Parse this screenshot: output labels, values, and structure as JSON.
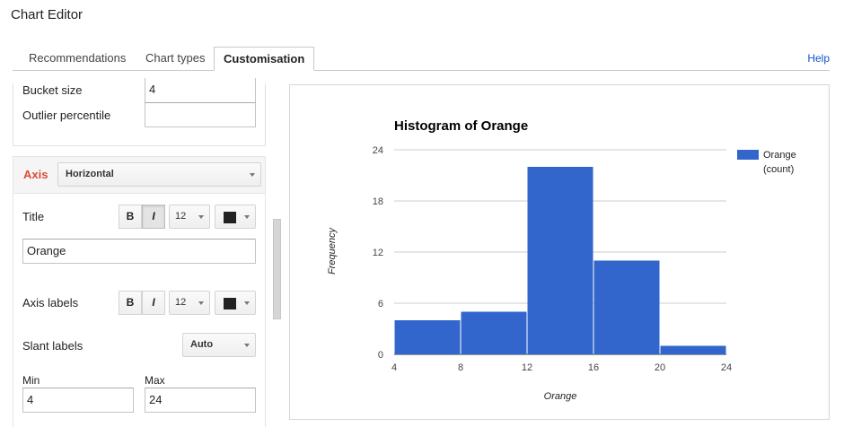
{
  "window": {
    "title": "Chart Editor"
  },
  "tabs": [
    {
      "label": "Recommendations",
      "active": false
    },
    {
      "label": "Chart types",
      "active": false
    },
    {
      "label": "Customisation",
      "active": true
    }
  ],
  "help_label": "Help",
  "histogram": {
    "bucket_size_label": "Bucket size",
    "bucket_size_value": "4",
    "outlier_label": "Outlier percentile",
    "outlier_value": ""
  },
  "axis": {
    "section_label": "Axis",
    "selected": "Horizontal",
    "title_label": "Title",
    "title_value": "Orange",
    "title_font_size": "12",
    "axis_labels_label": "Axis labels",
    "axis_labels_font_size": "12",
    "slant_label": "Slant labels",
    "slant_value": "Auto",
    "min_label": "Min",
    "min_value": "4",
    "max_label": "Max",
    "max_value": "24",
    "bold_glyph": "B",
    "italic_glyph": "I",
    "text_color": "#222222"
  },
  "chart_data": {
    "type": "bar",
    "title": "Histogram of Orange",
    "xlabel": "Orange",
    "ylabel": "Frequency",
    "bins": [
      {
        "from": 4,
        "to": 8,
        "count": 4
      },
      {
        "from": 8,
        "to": 12,
        "count": 5
      },
      {
        "from": 12,
        "to": 16,
        "count": 22
      },
      {
        "from": 16,
        "to": 20,
        "count": 11
      },
      {
        "from": 20,
        "to": 24,
        "count": 1
      }
    ],
    "x_ticks": [
      "4",
      "8",
      "12",
      "16",
      "20",
      "24"
    ],
    "y_ticks": [
      "0",
      "6",
      "12",
      "18",
      "24"
    ],
    "ylim": [
      0,
      24
    ],
    "xlim": [
      4,
      24
    ],
    "grid": true,
    "legend": {
      "position": "right",
      "label_line1": "Orange",
      "label_line2": "(count)"
    },
    "series_color": "#3366cc"
  }
}
